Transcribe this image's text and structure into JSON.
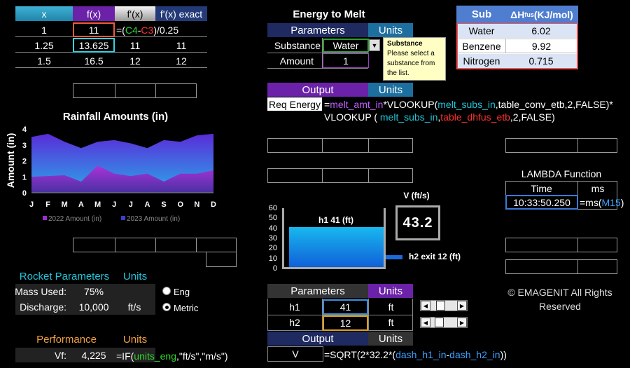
{
  "deriv": {
    "headers": [
      "x",
      "f(x)",
      "f'(x)",
      "f'(x) exact"
    ],
    "rows": [
      [
        "1",
        "11",
        "",
        ""
      ],
      [
        "1.25",
        "13.625",
        "11",
        "11"
      ],
      [
        "1.5",
        "16.5",
        "12",
        "12"
      ]
    ],
    "formula": {
      "p1": "=(",
      "c4": "C4",
      "minus": "-",
      "c3": "C3",
      "p2": ")/0.25"
    }
  },
  "energy": {
    "title": "Energy to Melt",
    "params_label": "Parameters",
    "units_label": "Units",
    "substance_label": "Substance",
    "substance_value": "Water",
    "amount_label": "Amount",
    "amount_value": "1",
    "tooltip_title": "Substance",
    "tooltip_text": "Please select a substance from the list.",
    "output_label": "Output",
    "output_units": "Units",
    "req_label": "Req Energy",
    "formula": {
      "a": "=",
      "b": "melt_amt_in",
      "c": "*VLOOKUP(",
      "d": "melt_subs_in",
      "e": ",table_conv_etb,2,FALSE)*",
      "f": "VLOOKUP ( ",
      "g": "melt_subs_in",
      "h": ",",
      "i": "table_dhfus_etb",
      "j": ",2,FALSE)"
    }
  },
  "subs": {
    "header_sub": "Sub",
    "header_dh": "ΔH",
    "header_dh_sub": "fus",
    "header_units": " (KJ/mol)",
    "rows": [
      [
        "Water",
        "6.02"
      ],
      [
        "Benzene",
        "9.92"
      ],
      [
        "Nitrogen",
        "0.715"
      ]
    ]
  },
  "chart_data": {
    "type": "area",
    "title": "Rainfall Amounts (in)",
    "ylabel": "Amount (in)",
    "xlabel": "",
    "categories": [
      "J",
      "F",
      "M",
      "A",
      "M",
      "J",
      "J",
      "A",
      "S",
      "O",
      "N",
      "D"
    ],
    "ylim": [
      0,
      4
    ],
    "yticks": [
      "0",
      "1",
      "2",
      "3",
      "4"
    ],
    "series": [
      {
        "name": "2022 Amount (in)",
        "values": [
          1.0,
          1.05,
          1.1,
          0.7,
          1.7,
          1.2,
          1.05,
          1.2,
          0.7,
          1.2,
          1.2,
          1.4
        ],
        "color": "#9c2cd0"
      },
      {
        "name": "2023 Amount (in)",
        "values": [
          3.5,
          3.7,
          3.2,
          2.8,
          3.2,
          3.3,
          3.1,
          2.8,
          3.3,
          3.2,
          3.6,
          3.7
        ],
        "color": "#3a3ec8"
      }
    ],
    "legend_position": "bottom"
  },
  "lambda": {
    "title": "LAMBDA Function",
    "time_label": "Time",
    "ms_label": "ms",
    "time_value": "10:33:50.250",
    "f1": "=ms(",
    "f2": "M15",
    "f3": ")"
  },
  "tank": {
    "v_label": "V (ft/s)",
    "v_value": "43.2",
    "h1_label": "h1 41  (ft)",
    "h2_label": "h2 exit 12 (ft)",
    "h1_fraction": 0.683,
    "yticks": [
      "60",
      "50",
      "40",
      "30",
      "20",
      "10",
      "0"
    ]
  },
  "rocket": {
    "title": "Rocket Parameters",
    "units": "Units",
    "mass_label": "Mass Used:",
    "mass_value": "75%",
    "discharge_label": "Discharge:",
    "discharge_value": "10,000",
    "discharge_unit": "ft/s",
    "radio_eng": "Eng",
    "radio_metric": "Metric",
    "perf_title": "Performance",
    "perf_units": "Units",
    "vf_label": "Vf:",
    "vf_value": "4,225",
    "vf_formula": {
      "a": "=IF(",
      "b": "units_eng",
      "c": ",\"ft/s\",\"m/s\")"
    }
  },
  "params2": {
    "params_label": "Parameters",
    "units_label": "Units",
    "h1_label": "h1",
    "h1_value": "41",
    "h1_unit": "ft",
    "h2_label": "h2",
    "h2_value": "12",
    "h2_unit": "ft",
    "output_label": "Output",
    "output_units": "Units",
    "v_label": "V",
    "formula": {
      "a": "=SQRT(2*32.2*(",
      "b": "dash_h1_in",
      "c": "-",
      "d": "dash_h2_in",
      "e": "))"
    }
  },
  "copyright": {
    "line1": "© EMAGENIT All Rights",
    "line2": "Reserved"
  }
}
